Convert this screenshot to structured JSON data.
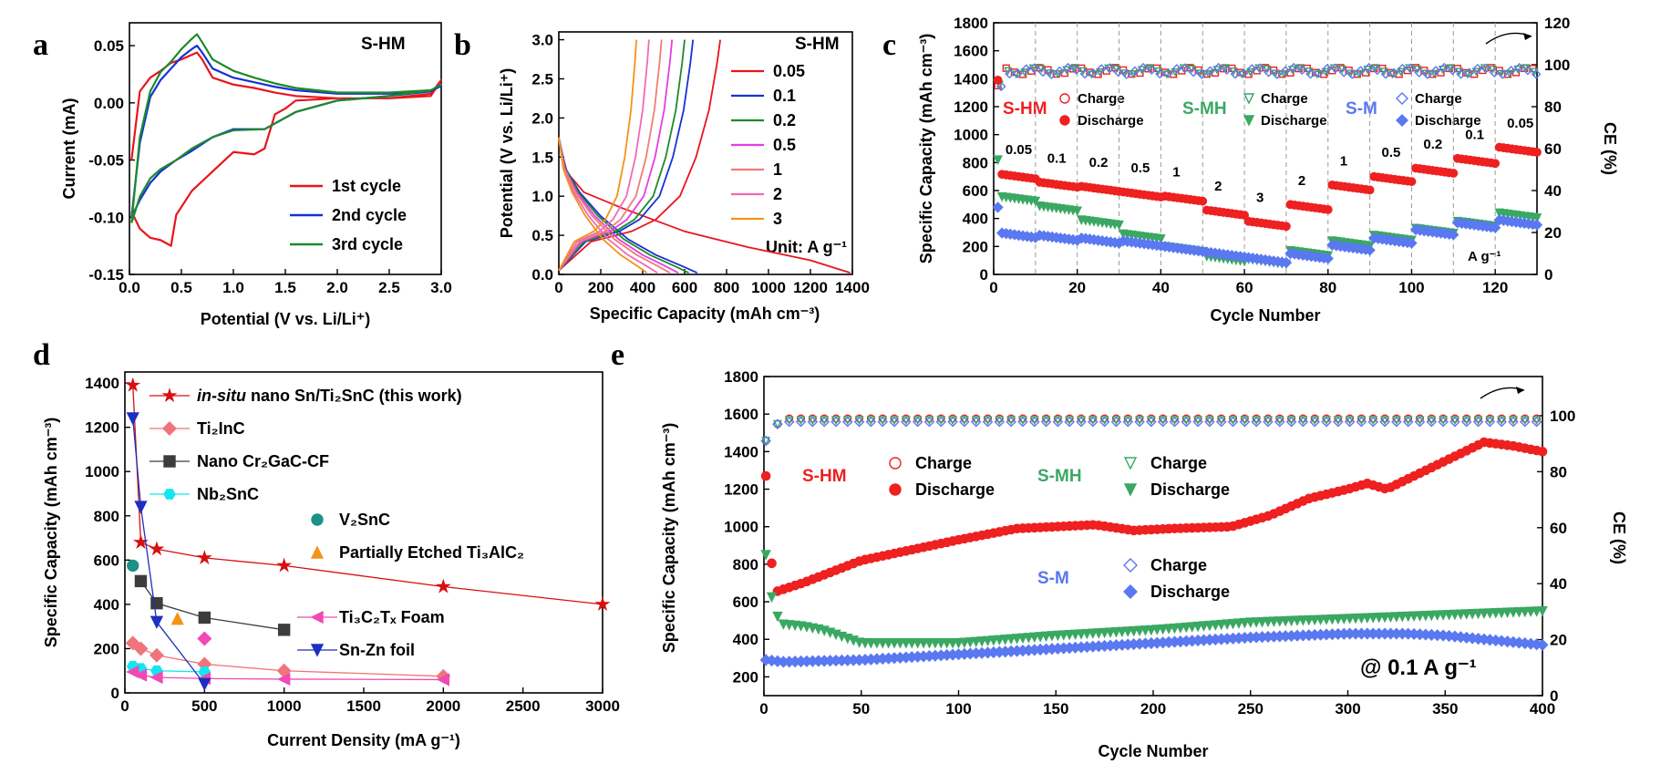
{
  "panel_letters": [
    "a",
    "b",
    "c",
    "d",
    "e"
  ],
  "colors": {
    "red": "#e8161b",
    "blue": "#1532d6",
    "green": "#1e8a2a",
    "magenta": "#e23fe6",
    "salmon": "#f07c78",
    "pink": "#f06ab6",
    "orange": "#f29418",
    "navy": "#1c2fbf",
    "darkred": "#d80f0f",
    "sred": "#ee2020",
    "sgreen": "#3aa862",
    "sblue": "#5a78f0",
    "gray": "#3c3c3c",
    "cyan": "#13e6f0",
    "teal": "#1d9189",
    "rose": "#f0747c",
    "hotpink": "#f04ab4"
  },
  "chart_data": [
    {
      "id": "a",
      "type": "line",
      "xlabel": "Potential (V vs. Li/Li⁺)",
      "ylabel": "Current (mA)",
      "xlim": [
        0,
        3.0
      ],
      "ylim": [
        -0.15,
        0.07
      ],
      "xticks": [
        "0.0",
        "0.5",
        "1.0",
        "1.5",
        "2.0",
        "2.5",
        "3.0"
      ],
      "yticks": [
        "-0.15",
        "-0.10",
        "-0.05",
        "0.00",
        "0.05"
      ],
      "inset_label": "S-HM",
      "legend": [
        "1st cycle",
        "2nd cycle",
        "3rd cycle"
      ],
      "series": [
        {
          "name": "1st cycle",
          "x": [
            0.02,
            0.1,
            0.2,
            0.3,
            0.4,
            0.5,
            0.6,
            0.65,
            0.7,
            0.8,
            1.0,
            1.2,
            1.4,
            1.6,
            2.0,
            2.5,
            2.9,
            3.0,
            2.9,
            2.5,
            2.0,
            1.6,
            1.5,
            1.4,
            1.3,
            1.2,
            1.0,
            0.8,
            0.6,
            0.45,
            0.4,
            0.3,
            0.2,
            0.1,
            0.02
          ],
          "y": [
            -0.05,
            0.01,
            0.022,
            0.028,
            0.035,
            0.038,
            0.042,
            0.044,
            0.038,
            0.022,
            0.016,
            0.013,
            0.009,
            0.006,
            0.004,
            0.004,
            0.006,
            0.02,
            0.008,
            0.004,
            0.004,
            0.002,
            -0.005,
            -0.01,
            -0.04,
            -0.045,
            -0.043,
            -0.06,
            -0.077,
            -0.098,
            -0.125,
            -0.12,
            -0.118,
            -0.11,
            -0.095
          ]
        },
        {
          "name": "2nd cycle",
          "x": [
            0.02,
            0.1,
            0.2,
            0.3,
            0.4,
            0.5,
            0.6,
            0.65,
            0.7,
            0.8,
            1.0,
            1.2,
            1.4,
            1.6,
            2.0,
            2.5,
            2.9,
            3.0,
            2.9,
            2.5,
            2.0,
            1.6,
            1.3,
            1.0,
            0.8,
            0.6,
            0.45,
            0.3,
            0.2,
            0.1,
            0.02
          ],
          "y": [
            -0.1,
            -0.035,
            0.005,
            0.02,
            0.03,
            0.04,
            0.047,
            0.05,
            0.044,
            0.03,
            0.022,
            0.018,
            0.014,
            0.011,
            0.008,
            0.008,
            0.01,
            0.015,
            0.01,
            0.006,
            0.002,
            -0.008,
            -0.023,
            -0.023,
            -0.03,
            -0.042,
            -0.05,
            -0.06,
            -0.07,
            -0.085,
            -0.1
          ]
        },
        {
          "name": "3rd cycle",
          "x": [
            0.02,
            0.1,
            0.2,
            0.3,
            0.4,
            0.5,
            0.6,
            0.65,
            0.7,
            0.8,
            1.0,
            1.2,
            1.4,
            1.6,
            2.0,
            2.5,
            2.9,
            3.0,
            2.9,
            2.5,
            2.0,
            1.6,
            1.3,
            1.0,
            0.8,
            0.6,
            0.45,
            0.3,
            0.2,
            0.1,
            0.02
          ],
          "y": [
            -0.105,
            -0.03,
            0.01,
            0.027,
            0.036,
            0.047,
            0.056,
            0.06,
            0.053,
            0.038,
            0.028,
            0.022,
            0.017,
            0.013,
            0.009,
            0.009,
            0.011,
            0.016,
            0.011,
            0.006,
            0.002,
            -0.008,
            -0.023,
            -0.024,
            -0.03,
            -0.04,
            -0.05,
            -0.058,
            -0.066,
            -0.082,
            -0.105
          ]
        }
      ]
    },
    {
      "id": "b",
      "type": "line",
      "xlabel": "Specific Capacity (mAh cm⁻³)",
      "ylabel": "Potential (V vs. Li/Li⁺)",
      "xlim": [
        0,
        1400
      ],
      "ylim": [
        0,
        3.1
      ],
      "xticks": [
        "0",
        "200",
        "400",
        "600",
        "800",
        "1000",
        "1200",
        "1400"
      ],
      "yticks": [
        "0.0",
        "0.5",
        "1.0",
        "1.5",
        "2.0",
        "2.5",
        "3.0"
      ],
      "legend_title": "S-HM",
      "unit_label": "Unit: A g⁻¹",
      "legend": [
        "0.05",
        "0.1",
        "0.2",
        "0.5",
        "1",
        "2",
        "3"
      ],
      "series": [
        {
          "name": "0.05",
          "charge_cap": 770,
          "discharge_cap": 1390
        },
        {
          "name": "0.1",
          "charge_cap": 640,
          "discharge_cap": 660
        },
        {
          "name": "0.2",
          "charge_cap": 600,
          "discharge_cap": 620
        },
        {
          "name": "0.5",
          "charge_cap": 540,
          "discharge_cap": 570
        },
        {
          "name": "1",
          "charge_cap": 490,
          "discharge_cap": 530
        },
        {
          "name": "2",
          "charge_cap": 430,
          "discharge_cap": 470
        },
        {
          "name": "3",
          "charge_cap": 370,
          "discharge_cap": 420
        }
      ]
    },
    {
      "id": "c",
      "type": "scatter",
      "xlabel": "Cycle Number",
      "ylabel": "Specific Capacity (mAh cm⁻³)",
      "y2label": "CE (%)",
      "xlim": [
        0,
        130
      ],
      "ylim": [
        0,
        1800
      ],
      "y2lim": [
        0,
        120
      ],
      "xticks": [
        "0",
        "20",
        "40",
        "60",
        "80",
        "100",
        "120"
      ],
      "yticks": [
        "0",
        "200",
        "400",
        "600",
        "800",
        "1000",
        "1200",
        "1400",
        "1600",
        "1800"
      ],
      "y2ticks": [
        "0",
        "20",
        "40",
        "60",
        "80",
        "100",
        "120"
      ],
      "rate_labels": [
        "0.05",
        "0.1",
        "0.2",
        "0.5",
        "1",
        "2",
        "3",
        "2",
        "1",
        "0.5",
        "0.2",
        "0.1",
        "0.05"
      ],
      "unit_label": "A g⁻¹",
      "legend": {
        "shm": "S-HM",
        "smh": "S-MH",
        "sm": "S-M",
        "charge": "Charge",
        "discharge": "Discharge"
      },
      "series": [
        {
          "name": "S-HM",
          "segment_values": [
            720,
            660,
            630,
            590,
            560,
            460,
            380,
            500,
            640,
            700,
            760,
            830,
            910
          ]
        },
        {
          "name": "S-MH",
          "segment_values": [
            560,
            490,
            390,
            290,
            200,
            130,
            110,
            170,
            240,
            280,
            330,
            380,
            440
          ]
        },
        {
          "name": "S-M",
          "segment_values": [
            300,
            280,
            260,
            240,
            200,
            160,
            120,
            150,
            210,
            260,
            320,
            370,
            390
          ]
        }
      ],
      "ce": 97
    },
    {
      "id": "d",
      "type": "line",
      "xlabel": "Current Density (mA g⁻¹)",
      "ylabel": "Specific Capacity (mAh cm⁻³)",
      "xlim": [
        0,
        3000
      ],
      "ylim": [
        0,
        1450
      ],
      "xticks": [
        "0",
        "500",
        "1000",
        "1500",
        "2000",
        "2500",
        "3000"
      ],
      "yticks": [
        "0",
        "200",
        "400",
        "600",
        "800",
        "1000",
        "1200",
        "1400"
      ],
      "legend": {
        "l1_italic": "in-situ",
        "l1_rest": " nano Sn/Ti₂SnC (this work)",
        "l2": "Ti₂InC",
        "l3": "Nano Cr₂GaC-CF",
        "l4": "Nb₂SnC",
        "l5": "V₂SnC",
        "l6": "Partially Etched Ti₃AlC₂",
        "l7": "Ti₃C₂Tₓ Foam",
        "l8": "Sn-Zn foil"
      },
      "series": [
        {
          "name": "in-situ nano Sn/Ti2SnC (this work)",
          "x": [
            50,
            100,
            200,
            500,
            1000,
            2000,
            3000
          ],
          "y": [
            1390,
            680,
            650,
            610,
            575,
            480,
            400
          ]
        },
        {
          "name": "Ti2InC",
          "x": [
            50,
            100,
            200,
            500,
            1000,
            2000
          ],
          "y": [
            225,
            200,
            170,
            130,
            100,
            75
          ]
        },
        {
          "name": "Nano Cr2GaC-CF",
          "x": [
            100,
            200,
            500,
            1000
          ],
          "y": [
            505,
            405,
            340,
            285
          ]
        },
        {
          "name": "Nb2SnC",
          "x": [
            50,
            100,
            200,
            500
          ],
          "y": [
            120,
            110,
            100,
            95
          ]
        },
        {
          "name": "V2SnC",
          "x": [
            50
          ],
          "y": [
            575
          ]
        },
        {
          "name": "Partially Etched Ti3AlC2",
          "x": [
            330
          ],
          "y": [
            335
          ]
        },
        {
          "name": "Ti3C2Tx Foam",
          "x": [
            50,
            100,
            200,
            500,
            1000,
            2000
          ],
          "y": [
            95,
            80,
            70,
            65,
            62,
            60
          ]
        },
        {
          "name": "Sn-Zn foil",
          "x": [
            50,
            100,
            200,
            500
          ],
          "y": [
            1240,
            840,
            320,
            40
          ]
        },
        {
          "name": "hotpink point",
          "x": [
            500
          ],
          "y": [
            245
          ]
        }
      ]
    },
    {
      "id": "e",
      "type": "scatter",
      "xlabel": "Cycle Number",
      "ylabel": "Specific Capacity (mAh cm⁻³)",
      "y2label": "CE (%)",
      "xlim": [
        0,
        400
      ],
      "ylim": [
        100,
        1800
      ],
      "y2lim": [
        0,
        114
      ],
      "xticks": [
        "0",
        "50",
        "100",
        "150",
        "200",
        "250",
        "300",
        "350",
        "400"
      ],
      "yticks": [
        "200",
        "400",
        "600",
        "800",
        "1000",
        "1200",
        "1400",
        "1600",
        "1800"
      ],
      "y2ticks": [
        "0",
        "20",
        "40",
        "60",
        "80",
        "100"
      ],
      "rate": "@ 0.1 A g⁻¹",
      "legend": {
        "shm": "S-HM",
        "smh": "S-MH",
        "sm": "S-M",
        "charge": "Charge",
        "discharge": "Discharge"
      },
      "series": [
        {
          "name": "S-HM",
          "x": [
            1,
            5,
            20,
            50,
            100,
            130,
            150,
            170,
            190,
            210,
            240,
            260,
            280,
            300,
            310,
            320,
            340,
            370,
            385,
            400
          ],
          "y": [
            1270,
            650,
            700,
            820,
            930,
            990,
            1000,
            1010,
            980,
            990,
            1000,
            1060,
            1150,
            1200,
            1230,
            1200,
            1300,
            1450,
            1430,
            1400
          ]
        },
        {
          "name": "S-MH",
          "x": [
            1,
            5,
            10,
            20,
            30,
            50,
            100,
            150,
            200,
            250,
            300,
            350,
            400
          ],
          "y": [
            850,
            550,
            480,
            470,
            450,
            380,
            380,
            420,
            450,
            490,
            510,
            530,
            550
          ]
        },
        {
          "name": "S-M",
          "x": [
            1,
            10,
            50,
            100,
            150,
            200,
            250,
            300,
            330,
            350,
            400
          ],
          "y": [
            290,
            280,
            290,
            320,
            350,
            380,
            410,
            430,
            430,
            420,
            370
          ]
        }
      ],
      "ce": 99
    }
  ]
}
